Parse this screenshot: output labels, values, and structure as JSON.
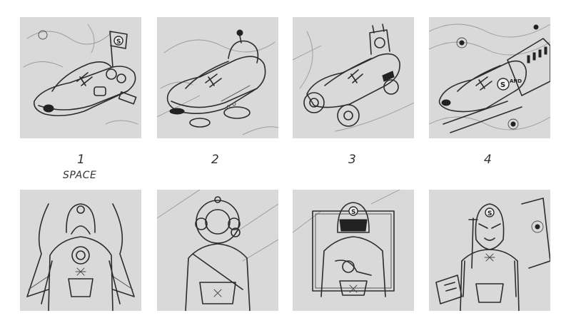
{
  "sketch_labels": {
    "col1": "1",
    "col1_sub": "SPACE",
    "col2": "2",
    "col3": "3",
    "col4": "4"
  },
  "badges": {
    "s_mark": "S",
    "sand_mark": "AND"
  },
  "colors": {
    "panel_background": "#d9d9d9",
    "ink": "#2c2c2c",
    "page_background": "#ffffff"
  }
}
